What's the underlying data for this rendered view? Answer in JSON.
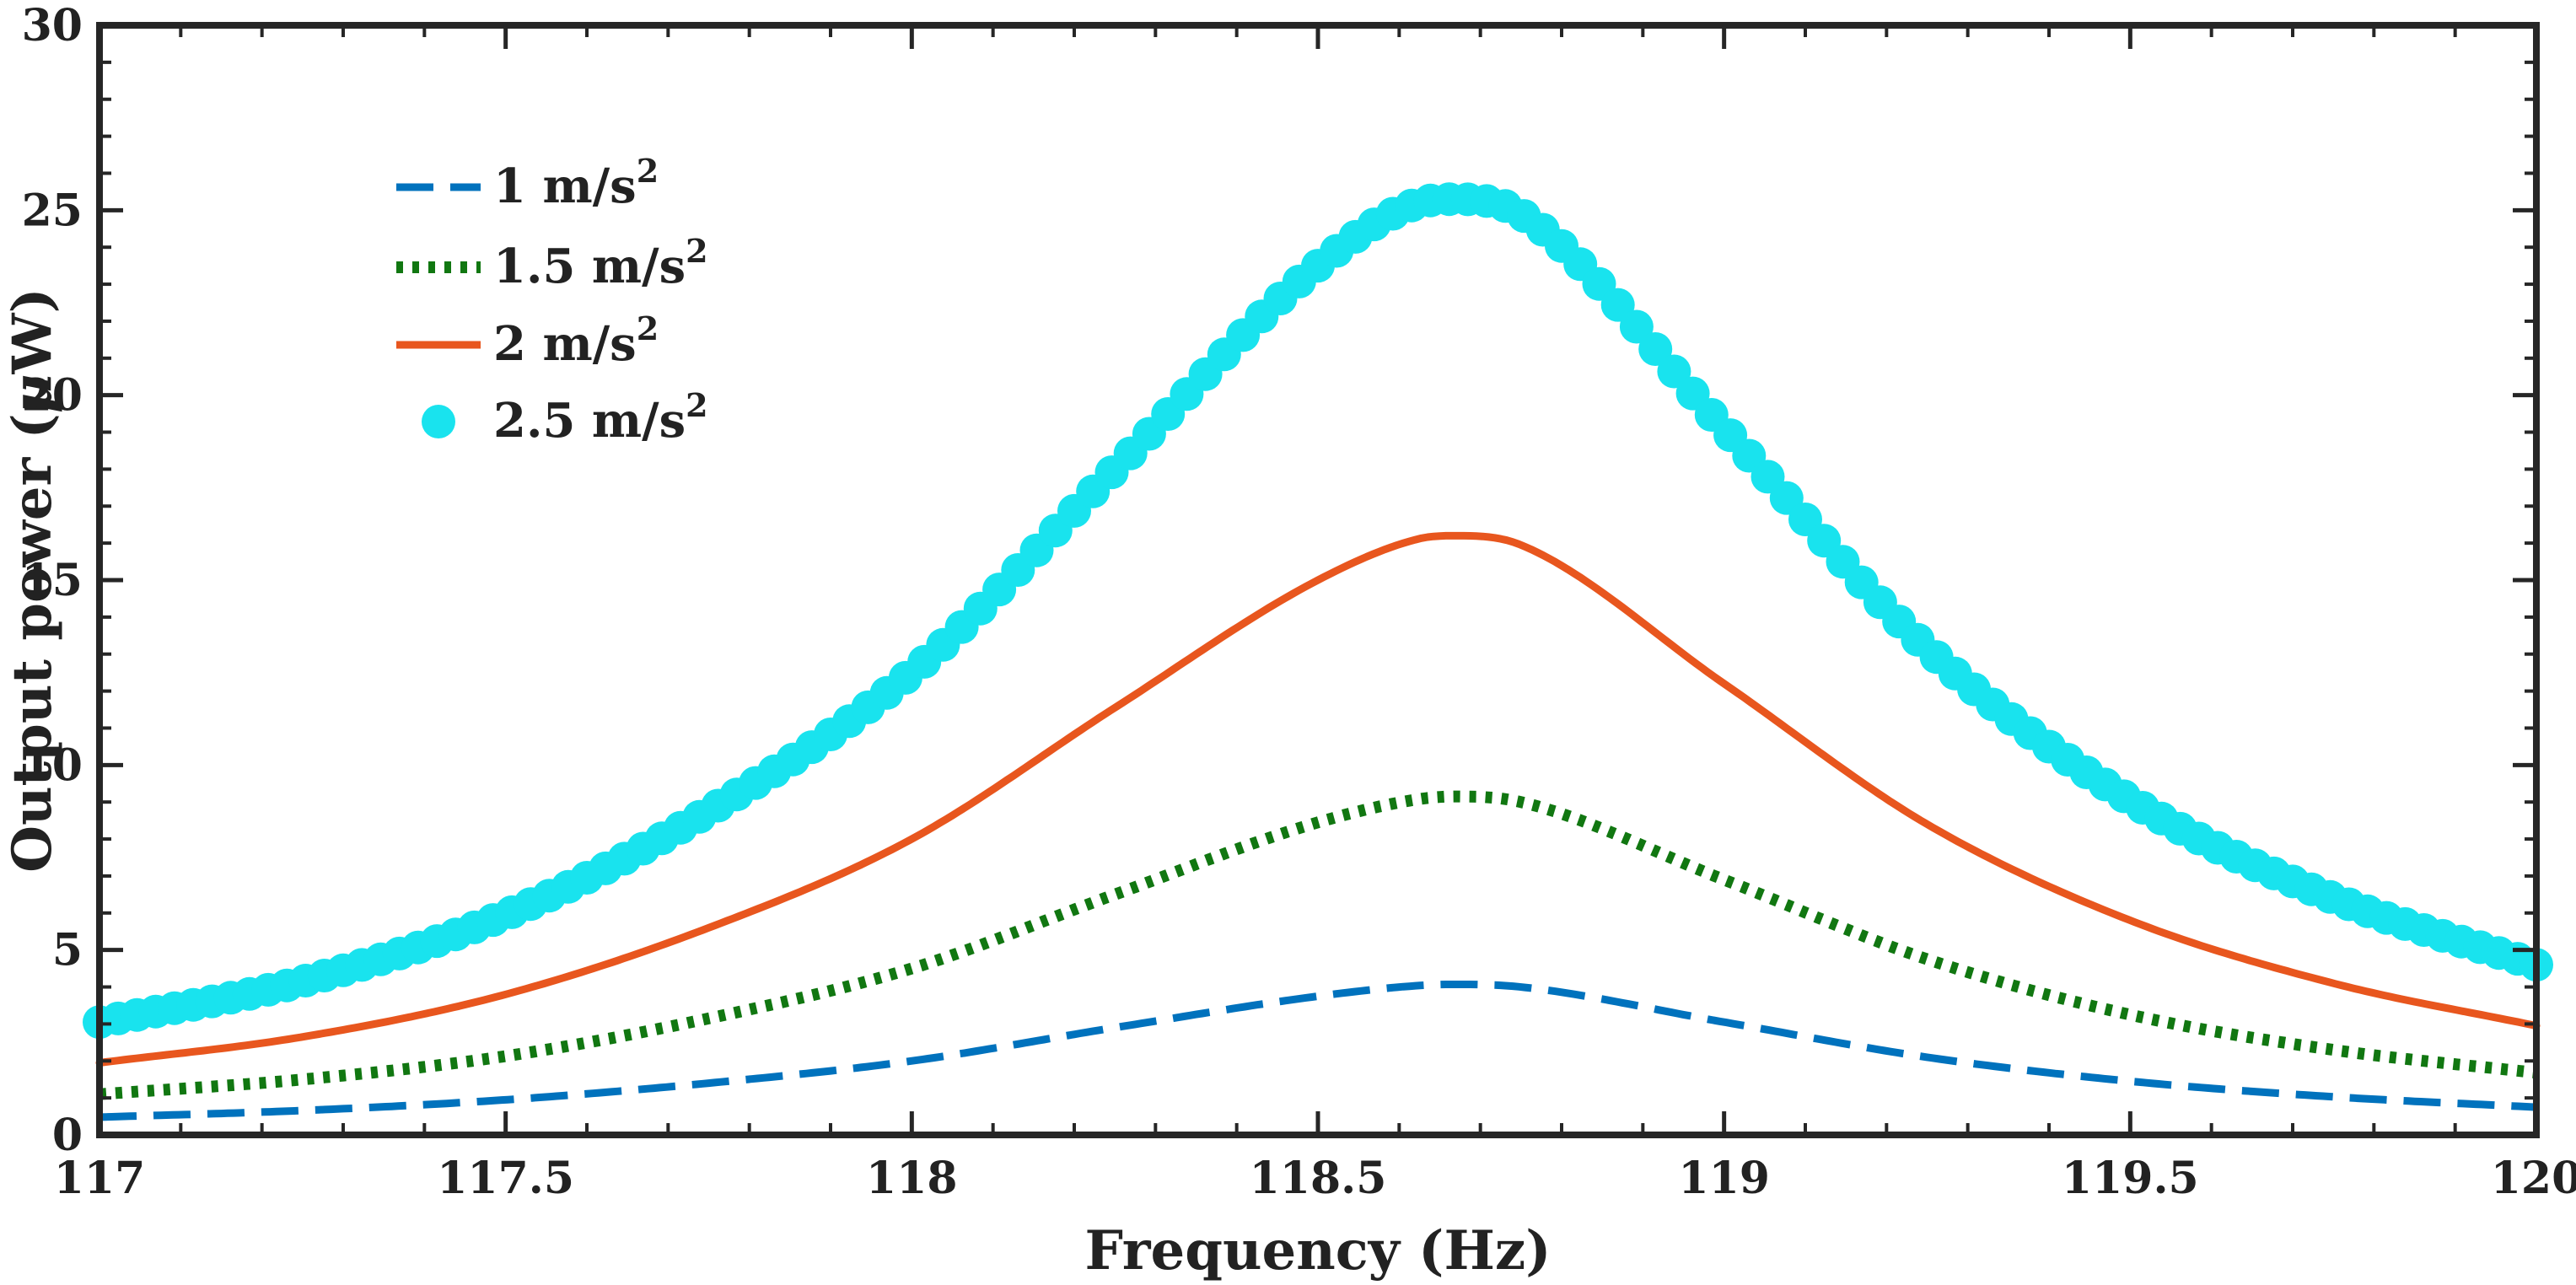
{
  "chart_data": {
    "type": "line",
    "title": "",
    "xlabel": "Frequency (Hz)",
    "ylabel_prefix": "Output power (",
    "ylabel_unit": "μ",
    "ylabel_suffix": "W)",
    "xlim": [
      117,
      120
    ],
    "ylim": [
      0,
      30
    ],
    "xticks": [
      117,
      117.5,
      118,
      118.5,
      119,
      119.5,
      120
    ],
    "xtick_labels": [
      "117",
      "117.5",
      "118",
      "118.5",
      "119",
      "119.5",
      "120"
    ],
    "yticks": [
      0,
      5,
      10,
      15,
      20,
      25,
      30
    ],
    "ytick_labels": [
      "0",
      "5",
      "10",
      "15",
      "20",
      "25",
      "30"
    ],
    "grid": false,
    "legend_position": "top-left",
    "x": [
      117.0,
      117.25,
      117.5,
      117.75,
      118.0,
      118.25,
      118.5,
      118.625,
      118.67,
      118.75,
      119.0,
      119.25,
      119.5,
      119.75,
      120.0
    ],
    "series": [
      {
        "name": "1 m/s",
        "superscript": "2",
        "color": "#0072BD",
        "style": "dashed",
        "values": [
          0.48,
          0.66,
          0.95,
          1.4,
          2.0,
          2.9,
          3.75,
          4.04,
          4.07,
          4.0,
          3.05,
          2.1,
          1.45,
          1.03,
          0.75
        ]
      },
      {
        "name": "1.5 m/s",
        "superscript": "2",
        "color": "#117711",
        "style": "dotted",
        "values": [
          1.1,
          1.5,
          2.13,
          3.15,
          4.5,
          6.5,
          8.45,
          9.08,
          9.15,
          9.0,
          6.9,
          4.75,
          3.25,
          2.3,
          1.68
        ]
      },
      {
        "name": "2 m/s",
        "superscript": "2",
        "color": "#E8561E",
        "style": "solid",
        "values": [
          1.95,
          2.65,
          3.8,
          5.6,
          8.0,
          11.55,
          15.0,
          16.12,
          16.2,
          15.95,
          12.2,
          8.4,
          5.8,
          4.1,
          2.95
        ]
      },
      {
        "name": "2.5 m/s",
        "superscript": "2",
        "color": "#19E3EE",
        "style": "markers",
        "values": [
          3.05,
          4.15,
          5.95,
          8.75,
          12.5,
          18.0,
          23.5,
          25.2,
          25.3,
          24.9,
          19.1,
          13.15,
          9.05,
          6.4,
          4.6
        ]
      }
    ]
  }
}
